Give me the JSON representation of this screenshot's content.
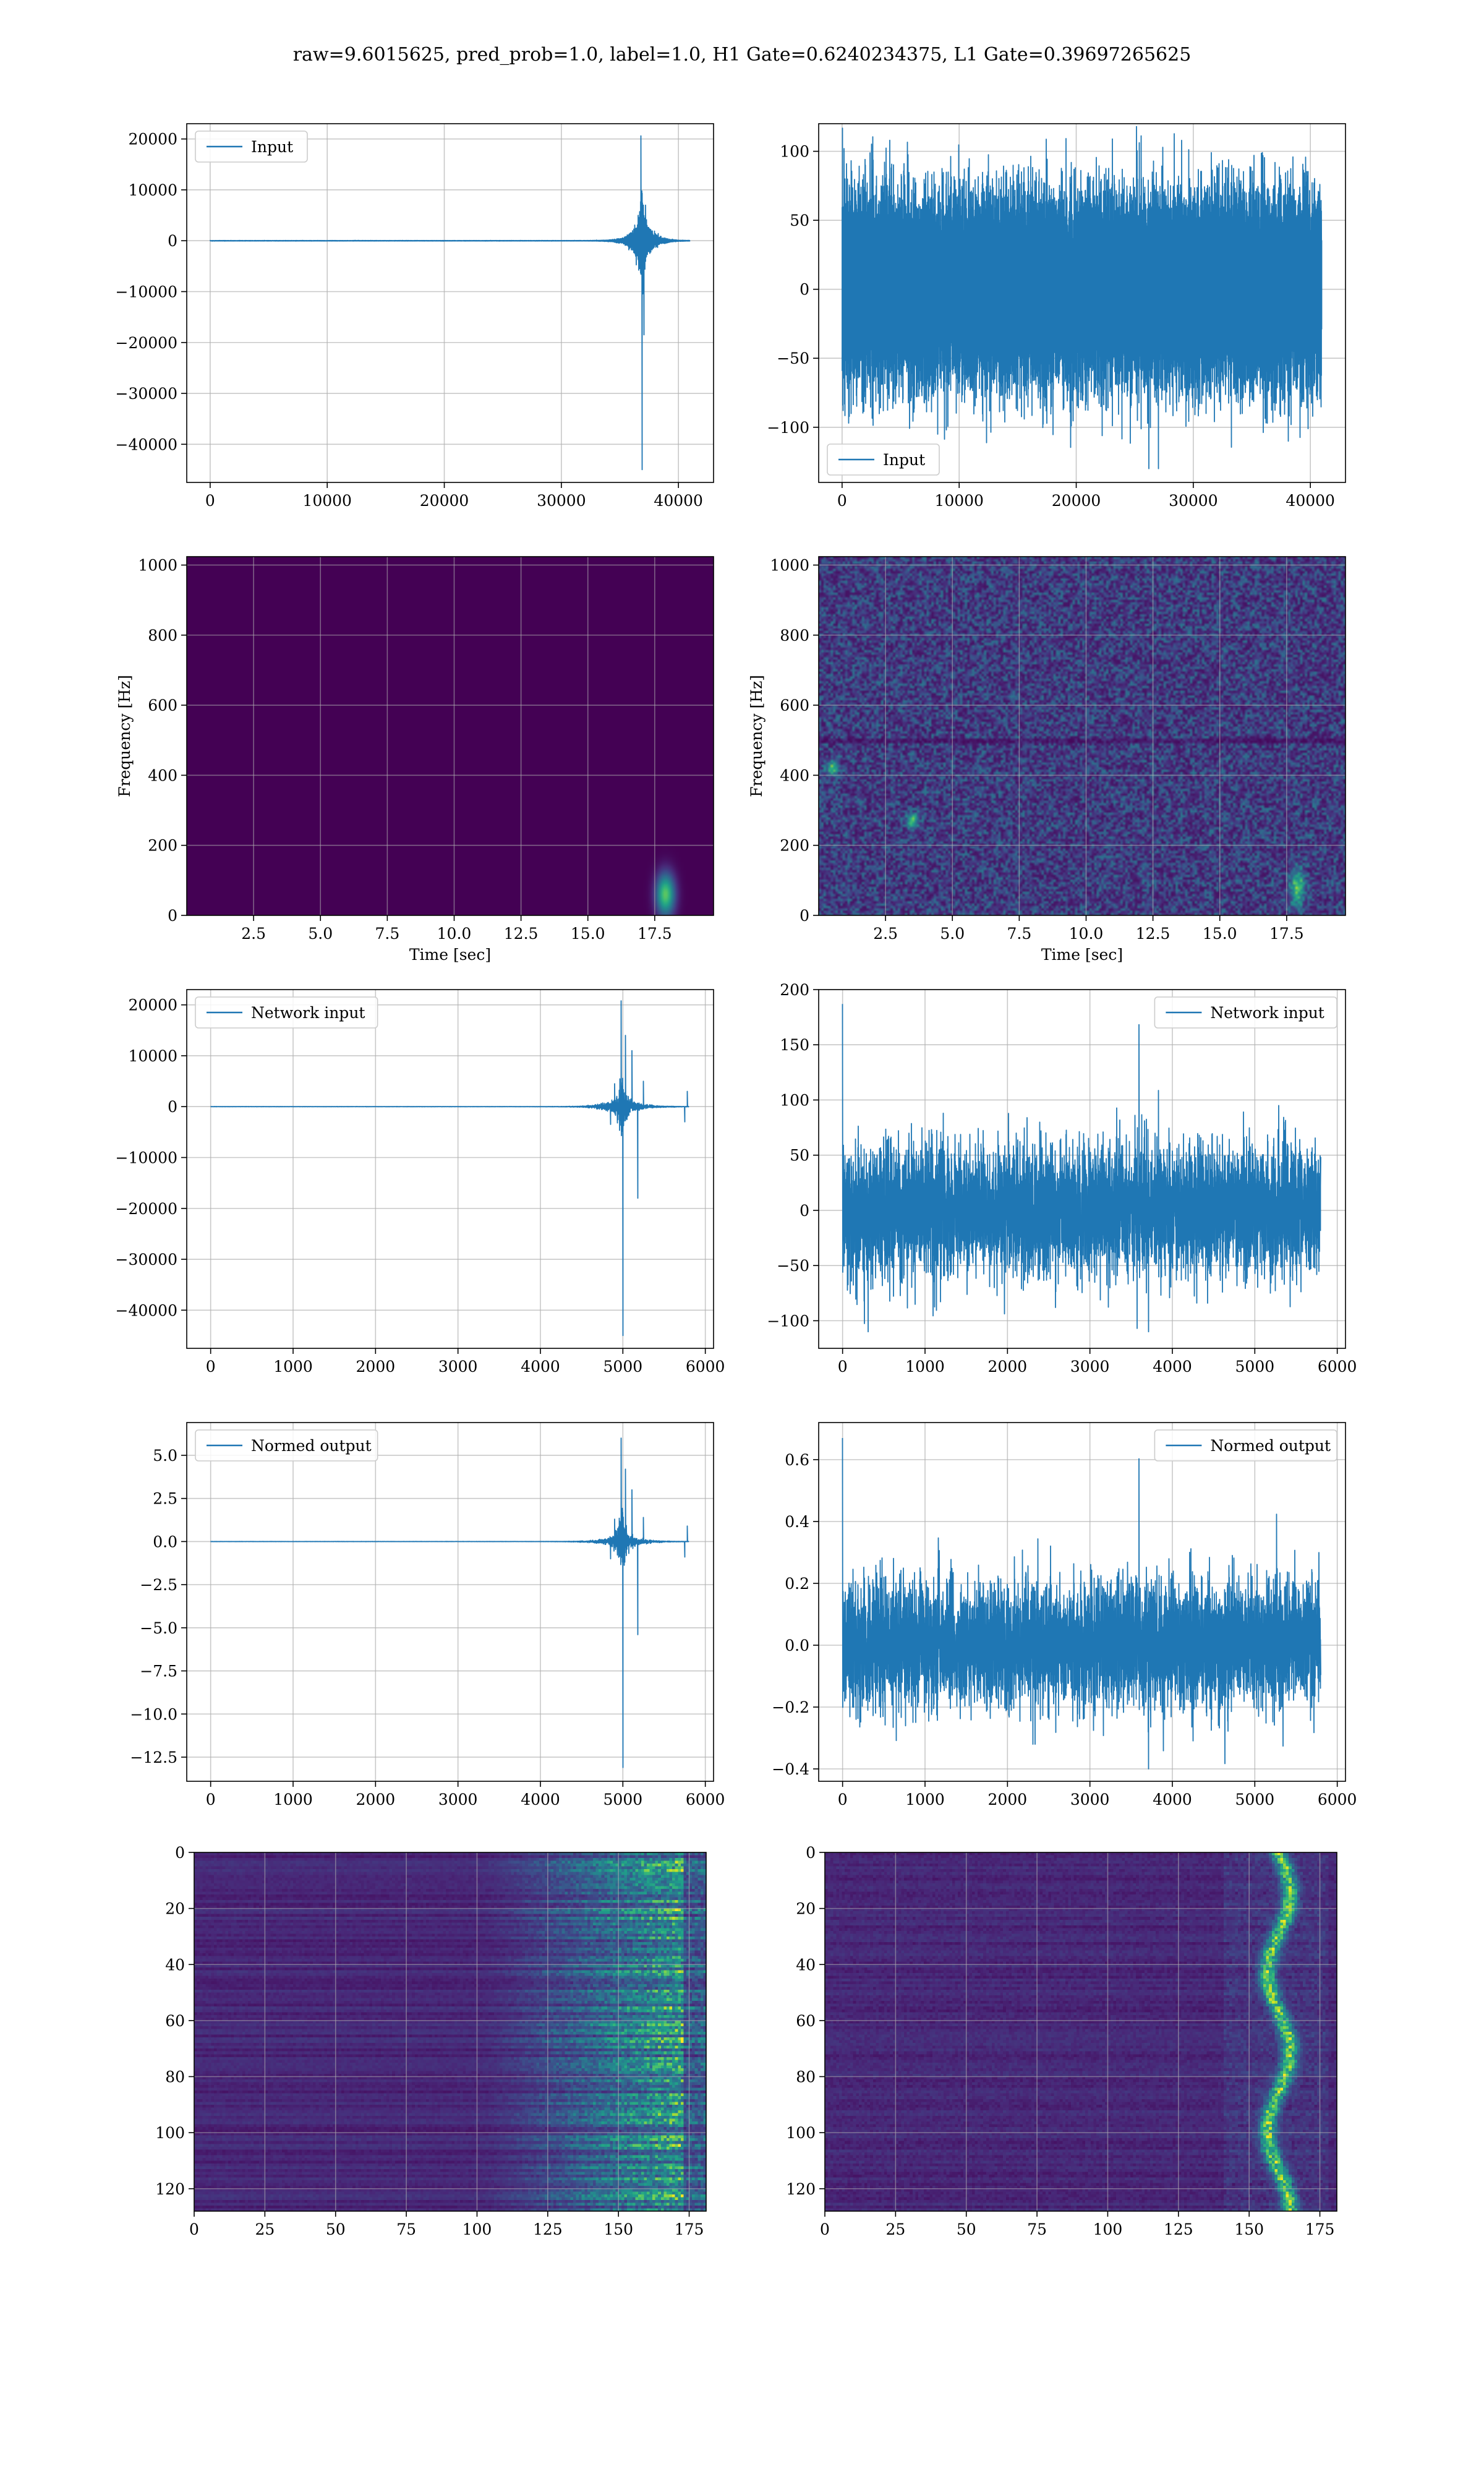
{
  "figure": {
    "title": "raw=9.6015625, pred_prob=1.0, label=1.0, H1 Gate=0.6240234375, L1 Gate=0.39697265625"
  },
  "colors": {
    "series": "#1f77b4",
    "grid": "#b0b0b0",
    "viridis": [
      "#440154",
      "#482878",
      "#3e4a89",
      "#31688e",
      "#26828e",
      "#1f9e89",
      "#35b779",
      "#6ece58",
      "#b5de2b",
      "#fde725"
    ]
  },
  "chart_data": [
    {
      "id": "h1-input",
      "type": "line",
      "legend": [
        "Input"
      ],
      "legend_loc": "upper-left",
      "xlim": [
        -2000,
        43000
      ],
      "ylim": [
        -47500,
        23000
      ],
      "xticks": [
        0,
        10000,
        20000,
        30000,
        40000
      ],
      "yticks": [
        -40000,
        -30000,
        -20000,
        -10000,
        0,
        10000,
        20000
      ],
      "xlabel": "",
      "ylabel": "",
      "grid": true,
      "series": [
        {
          "kind": "burst",
          "n": 40960,
          "t0": 36900,
          "decay": 180,
          "noise": 60,
          "spikes": [
            [
              36800,
              20600
            ],
            [
              36900,
              -45000
            ],
            [
              37050,
              -18500
            ],
            [
              37200,
              7000
            ],
            [
              36700,
              3000
            ],
            [
              36500,
              -1500
            ],
            [
              37400,
              2500
            ]
          ]
        }
      ]
    },
    {
      "id": "l1-input",
      "type": "line",
      "legend": [
        "Input"
      ],
      "legend_loc": "lower-left",
      "xlim": [
        -2000,
        43000
      ],
      "ylim": [
        -140,
        120
      ],
      "xticks": [
        0,
        10000,
        20000,
        30000,
        40000
      ],
      "yticks": [
        -100,
        -50,
        0,
        50,
        100
      ],
      "xlabel": "",
      "ylabel": "",
      "grid": true,
      "series": [
        {
          "kind": "noise",
          "n": 40960,
          "std": 30,
          "min": -130,
          "max": 118
        }
      ]
    },
    {
      "id": "h1-spectrogram",
      "type": "heatmap",
      "xlim": [
        0,
        19.7
      ],
      "ylim": [
        0,
        1024
      ],
      "xticks": [
        2.5,
        5.0,
        7.5,
        10.0,
        12.5,
        15.0,
        17.5
      ],
      "yticks": [
        0,
        200,
        400,
        600,
        800,
        1000
      ],
      "xlabel": "Time [sec]",
      "ylabel": "Frequency [Hz]",
      "grid": true,
      "blobs": [
        [
          17.9,
          60,
          0.35,
          60,
          0.75
        ]
      ]
    },
    {
      "id": "l1-spectrogram",
      "type": "heatmap",
      "xlim": [
        0,
        19.7
      ],
      "ylim": [
        0,
        1024
      ],
      "xticks": [
        2.5,
        5.0,
        7.5,
        10.0,
        12.5,
        15.0,
        17.5
      ],
      "yticks": [
        0,
        200,
        400,
        600,
        800,
        1000
      ],
      "xlabel": "Time [sec]",
      "ylabel": "Frequency [Hz]",
      "grid": true,
      "noise": true,
      "blobs": [
        [
          17.9,
          80,
          0.25,
          50,
          0.55
        ],
        [
          3.5,
          270,
          0.2,
          20,
          0.6
        ],
        [
          0.5,
          420,
          0.2,
          20,
          0.55
        ]
      ]
    },
    {
      "id": "h1-network-input",
      "type": "line",
      "legend": [
        "Network input"
      ],
      "legend_loc": "upper-left",
      "xlim": [
        -290,
        6100
      ],
      "ylim": [
        -47500,
        23000
      ],
      "xticks": [
        0,
        1000,
        2000,
        3000,
        4000,
        5000,
        6000
      ],
      "yticks": [
        -40000,
        -30000,
        -20000,
        -10000,
        0,
        10000,
        20000
      ],
      "xlabel": "",
      "ylabel": "",
      "grid": true,
      "series": [
        {
          "kind": "burst",
          "n": 5800,
          "t0": 4990,
          "decay": 40,
          "noise": 30,
          "spikes": [
            [
              4980,
              20800
            ],
            [
              5000,
              -45000
            ],
            [
              5030,
              14000
            ],
            [
              5180,
              -18000
            ],
            [
              5110,
              11000
            ],
            [
              4900,
              4500
            ],
            [
              4850,
              -3500
            ],
            [
              5250,
              5000
            ],
            [
              5750,
              -3000
            ],
            [
              5780,
              3000
            ]
          ]
        }
      ]
    },
    {
      "id": "l1-network-input",
      "type": "line",
      "legend": [
        "Network input"
      ],
      "legend_loc": "upper-right",
      "xlim": [
        -290,
        6100
      ],
      "ylim": [
        -125,
        200
      ],
      "xticks": [
        0,
        1000,
        2000,
        3000,
        4000,
        5000,
        6000
      ],
      "yticks": [
        -100,
        -50,
        0,
        50,
        100,
        150,
        200
      ],
      "xlabel": "",
      "ylabel": "",
      "grid": true,
      "series": [
        {
          "kind": "noise",
          "n": 5800,
          "std": 28,
          "min": -110,
          "max": 187,
          "spike_start": 187
        }
      ]
    },
    {
      "id": "h1-normed-output",
      "type": "line",
      "legend": [
        "Normed output"
      ],
      "legend_loc": "upper-left",
      "xlim": [
        -290,
        6100
      ],
      "ylim": [
        -13.9,
        6.9
      ],
      "xticks": [
        0,
        1000,
        2000,
        3000,
        4000,
        5000,
        6000
      ],
      "yticks": [
        -12.5,
        -10.0,
        -7.5,
        -5.0,
        -2.5,
        0.0,
        2.5,
        5.0
      ],
      "xlabel": "",
      "ylabel": "",
      "grid": true,
      "series": [
        {
          "kind": "burst",
          "n": 5800,
          "t0": 4990,
          "decay": 40,
          "noise": 0.008,
          "spikes": [
            [
              4980,
              6.0
            ],
            [
              5000,
              -13.1
            ],
            [
              5030,
              4.2
            ],
            [
              5180,
              -5.4
            ],
            [
              5110,
              3.0
            ],
            [
              4900,
              1.3
            ],
            [
              4850,
              -1.0
            ],
            [
              5250,
              1.4
            ],
            [
              5750,
              -0.9
            ],
            [
              5780,
              0.9
            ]
          ]
        }
      ]
    },
    {
      "id": "l1-normed-output",
      "type": "line",
      "legend": [
        "Normed output"
      ],
      "legend_loc": "upper-right",
      "xlim": [
        -290,
        6100
      ],
      "ylim": [
        -0.44,
        0.72
      ],
      "xticks": [
        0,
        1000,
        2000,
        3000,
        4000,
        5000,
        6000
      ],
      "yticks": [
        -0.4,
        -0.2,
        0.0,
        0.2,
        0.4,
        0.6
      ],
      "xlabel": "",
      "ylabel": "",
      "grid": true,
      "series": [
        {
          "kind": "noise",
          "n": 5800,
          "std": 0.1,
          "min": -0.4,
          "max": 0.67,
          "spike_start": 0.67
        }
      ]
    },
    {
      "id": "h1-feature-map",
      "type": "heatmap",
      "xlim": [
        0,
        181
      ],
      "ylim": [
        128,
        0
      ],
      "xticks": [
        0,
        25,
        50,
        75,
        100,
        125,
        150,
        175
      ],
      "yticks": [
        0,
        20,
        40,
        60,
        80,
        100,
        120
      ],
      "xlabel": "",
      "ylabel": "",
      "grid": true,
      "feature": "h1"
    },
    {
      "id": "l1-feature-map",
      "type": "heatmap",
      "xlim": [
        0,
        181
      ],
      "ylim": [
        128,
        0
      ],
      "xticks": [
        0,
        25,
        50,
        75,
        100,
        125,
        150,
        175
      ],
      "yticks": [
        0,
        20,
        40,
        60,
        80,
        100,
        120
      ],
      "xlabel": "",
      "ylabel": "",
      "grid": true,
      "feature": "l1"
    }
  ]
}
